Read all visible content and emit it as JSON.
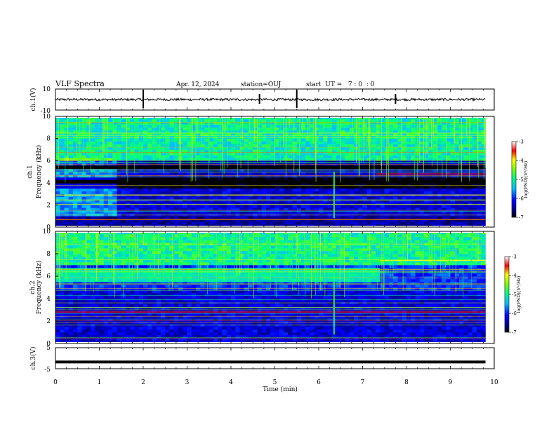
{
  "header": {
    "title": "VLF Spectra",
    "date": "Apr. 12, 2024",
    "station": "station=OUJ",
    "start": "start  UT =   7 : 0  : 0"
  },
  "chart_data": [
    {
      "type": "line",
      "panel": "ch1-waveform",
      "ylabel": "ch.1(V)",
      "ylim": [
        -10,
        10
      ],
      "yticks": [
        "10",
        "-10"
      ],
      "baseline": 0,
      "spikes_x_min": [
        2.0,
        4.65,
        5.5,
        7.75
      ]
    },
    {
      "type": "heatmap",
      "panel": "ch1-spectrogram",
      "ylabel": "ch.1\nFrequency (kHz)",
      "ylim": [
        0,
        10
      ],
      "yticks": [
        "0",
        "2",
        "4",
        "6",
        "8",
        "10"
      ],
      "xlim": [
        0,
        9.8
      ],
      "colorbar": {
        "label": "log(PSD)(V²/Hz)",
        "range": [
          -7,
          -3
        ],
        "ticks": [
          "-3",
          "-4",
          "-5",
          "-6",
          "-7"
        ]
      },
      "bands_khz": [
        {
          "freq": 4.1,
          "level": -7
        },
        {
          "freq": 5.4,
          "level": -7
        },
        {
          "freq": 4.8,
          "level": -3.5,
          "x_from": 7.3,
          "x_to": 9.8
        },
        {
          "freq": 2.9,
          "level": -4
        },
        {
          "freq": 0.7,
          "level": -3.5
        }
      ]
    },
    {
      "type": "heatmap",
      "panel": "ch2-spectrogram",
      "ylabel": "ch.2\nFrequency (kHz)",
      "ylim": [
        0,
        10
      ],
      "yticks": [
        "0",
        "2",
        "4",
        "6",
        "8",
        "10"
      ],
      "xlim": [
        0,
        9.8
      ],
      "colorbar": {
        "label": "log(PSD)(V²/Hz)",
        "range": [
          -7,
          -3
        ],
        "ticks": [
          "-3",
          "-4",
          "-5",
          "-6",
          "-7"
        ]
      },
      "bands_khz": [
        {
          "freq": 6.1,
          "level": -5,
          "x_from": 0,
          "x_to": 7.4
        },
        {
          "freq": 2.8,
          "level": -3.5
        },
        {
          "freq": 7.4,
          "level": -4,
          "x_from": 7.4,
          "x_to": 9.8
        }
      ]
    },
    {
      "type": "line",
      "panel": "ch3-waveform",
      "ylabel": "ch.3(V)",
      "ylim": [
        -5,
        5
      ],
      "yticks": [
        "5",
        "-5"
      ],
      "xlabel": "Time (min)",
      "xlim": [
        0,
        10
      ],
      "xticks": [
        "0",
        "1",
        "2",
        "3",
        "4",
        "5",
        "6",
        "7",
        "8",
        "9",
        "10"
      ],
      "constant_value": -1.8
    }
  ]
}
